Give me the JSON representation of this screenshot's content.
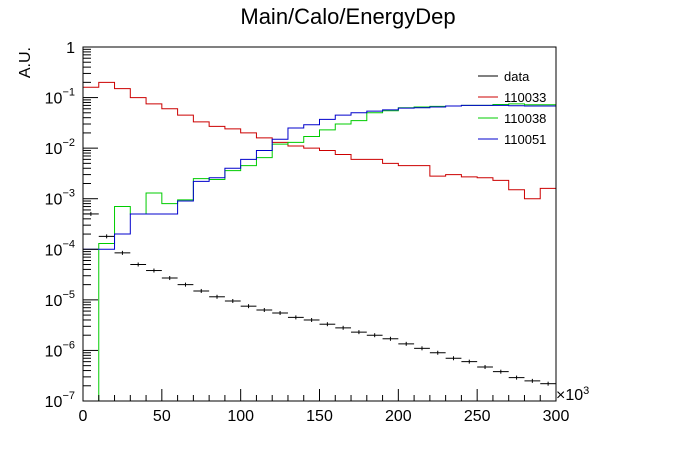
{
  "chart_data": {
    "type": "line",
    "title": "Main/Calo/EnergyDep",
    "xlabel": "",
    "ylabel": "A.U.",
    "x_multiplier_label": "×10",
    "x_multiplier_exponent": "3",
    "xlim": [
      0,
      300
    ],
    "ylim": [
      1e-07,
      1
    ],
    "y_scale": "log",
    "grid": false,
    "legend_position": "top-right",
    "x_ticks": [
      0,
      50,
      100,
      150,
      200,
      250,
      300
    ],
    "x_tick_labels": [
      "0",
      "50",
      "100",
      "150",
      "200",
      "250",
      "300"
    ],
    "y_ticks": [
      1e-07,
      1e-06,
      1e-05,
      0.0001,
      0.001,
      0.01,
      0.1,
      1
    ],
    "y_tick_labels": [
      {
        "base": "10",
        "exp": "−7"
      },
      {
        "base": "10",
        "exp": "−6"
      },
      {
        "base": "10",
        "exp": "−5"
      },
      {
        "base": "10",
        "exp": "−4"
      },
      {
        "base": "10",
        "exp": "−3"
      },
      {
        "base": "10",
        "exp": "−2"
      },
      {
        "base": "10",
        "exp": "−1"
      },
      {
        "base": "1",
        "exp": ""
      }
    ],
    "bin_width": 10,
    "x": [
      5,
      15,
      25,
      35,
      45,
      55,
      65,
      75,
      85,
      95,
      105,
      115,
      125,
      135,
      145,
      155,
      165,
      175,
      185,
      195,
      205,
      215,
      225,
      235,
      245,
      255,
      265,
      275,
      285,
      295
    ],
    "series": [
      {
        "name": "data",
        "color": "#000000",
        "style": "points",
        "values": [
          0.0005,
          0.00018,
          8.5e-05,
          5e-05,
          3.8e-05,
          2.7e-05,
          2e-05,
          1.5e-05,
          1.15e-05,
          9.5e-06,
          7.5e-06,
          6.3e-06,
          5.5e-06,
          4.5e-06,
          4e-06,
          3.3e-06,
          2.8e-06,
          2.3e-06,
          2e-06,
          1.7e-06,
          1.35e-06,
          1.1e-06,
          9e-07,
          7e-07,
          6e-07,
          4.7e-07,
          3.8e-07,
          2.9e-07,
          2.5e-07,
          2.2e-07
        ]
      },
      {
        "name": "110033",
        "color": "#cc0000",
        "style": "step",
        "values": [
          0.16,
          0.2,
          0.15,
          0.1,
          0.075,
          0.06,
          0.045,
          0.033,
          0.027,
          0.024,
          0.02,
          0.016,
          0.013,
          0.011,
          0.01,
          0.009,
          0.0075,
          0.006,
          0.006,
          0.005,
          0.0045,
          0.0045,
          0.0028,
          0.003,
          0.0027,
          0.0026,
          0.0023,
          0.0015,
          0.001,
          0.0016
        ]
      },
      {
        "name": "110038",
        "color": "#00cc00",
        "style": "step",
        "values": [
          1e-07,
          0.00013,
          0.0007,
          0.0005,
          0.0013,
          0.0008,
          0.00095,
          0.0025,
          0.0024,
          0.0036,
          0.0045,
          0.0065,
          0.012,
          0.013,
          0.017,
          0.023,
          0.03,
          0.035,
          0.05,
          0.055,
          0.063,
          0.065,
          0.067,
          0.068,
          0.07,
          0.07,
          0.073,
          0.075,
          0.072,
          0.072
        ]
      },
      {
        "name": "110051",
        "color": "#0000cc",
        "style": "step",
        "values": [
          0.0001,
          0.0001,
          0.0002,
          0.0005,
          0.0005,
          0.0005,
          0.0009,
          0.0022,
          0.0026,
          0.004,
          0.006,
          0.009,
          0.015,
          0.025,
          0.029,
          0.037,
          0.045,
          0.05,
          0.054,
          0.057,
          0.062,
          0.063,
          0.065,
          0.068,
          0.07,
          0.07,
          0.07,
          0.069,
          0.068,
          0.068
        ]
      }
    ]
  }
}
